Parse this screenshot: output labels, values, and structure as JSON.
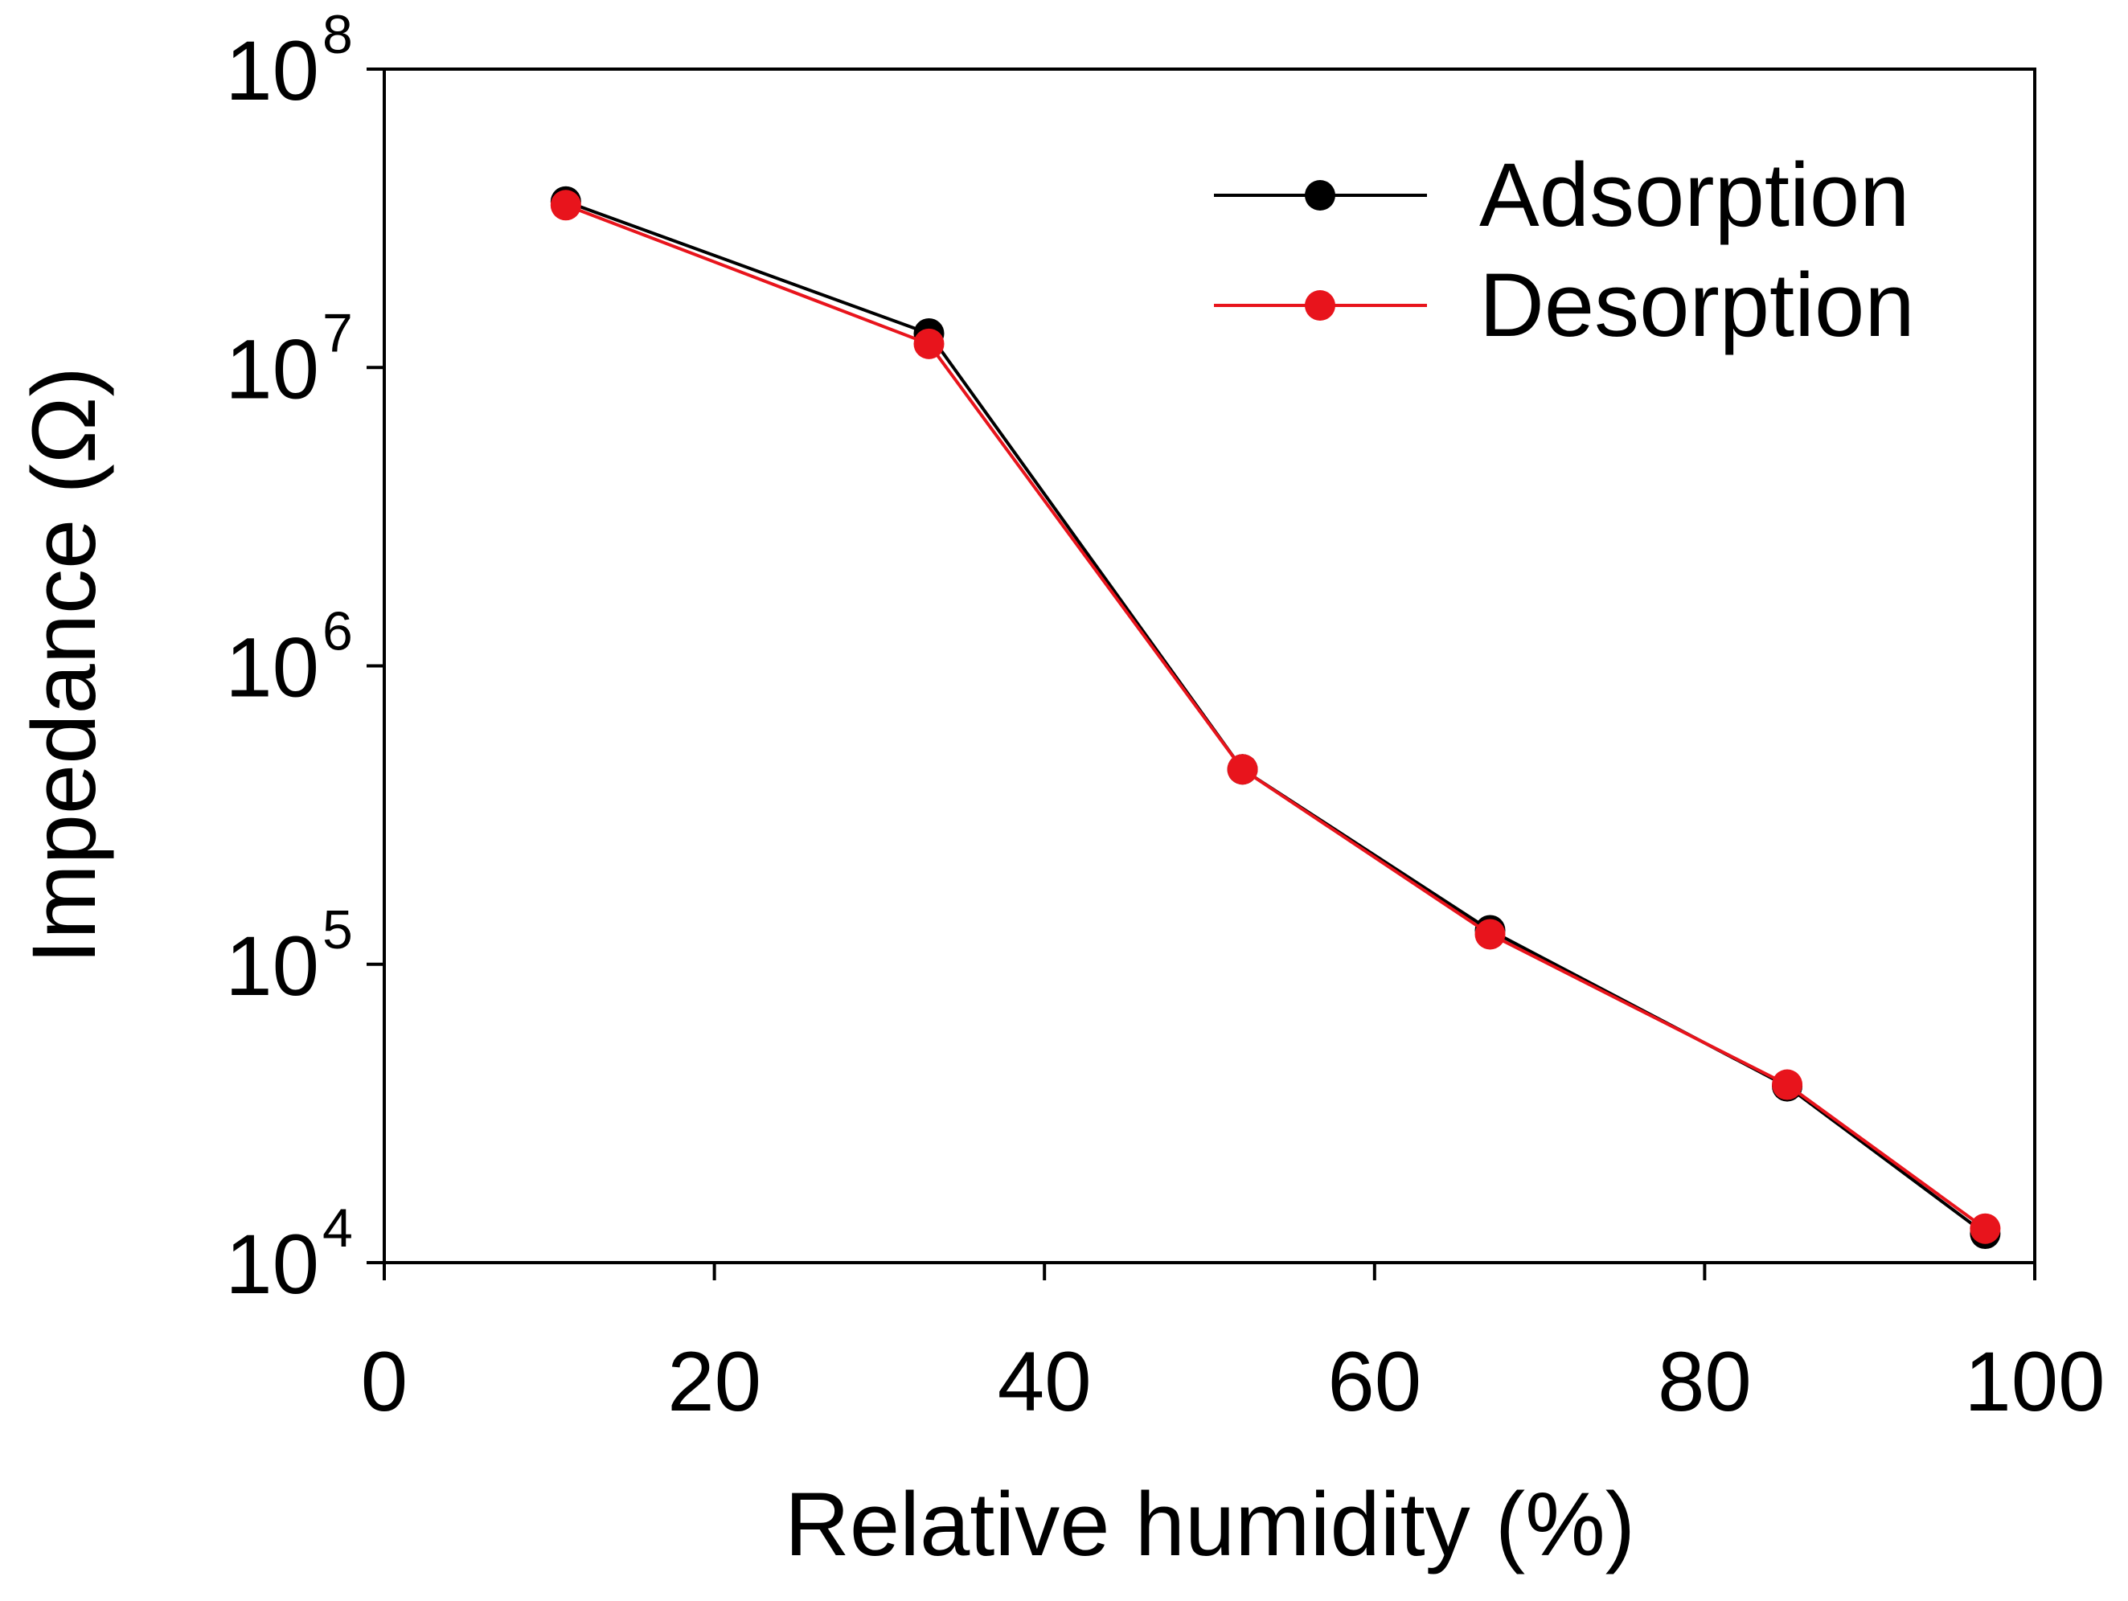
{
  "chart_data": {
    "type": "line",
    "title": "",
    "xlabel": "Relative humidity (%)",
    "ylabel": "Impedance (Ω)",
    "xlim": [
      0,
      100
    ],
    "xticks": [
      "0",
      "20",
      "40",
      "60",
      "80",
      "100"
    ],
    "xtick_values": [
      0,
      20,
      40,
      60,
      80,
      100
    ],
    "yscale": "log",
    "ylim": [
      10000,
      100000000
    ],
    "yticks": [
      {
        "base": "10",
        "exp": "4",
        "value": 10000
      },
      {
        "base": "10",
        "exp": "5",
        "value": 100000
      },
      {
        "base": "10",
        "exp": "6",
        "value": 1000000
      },
      {
        "base": "10",
        "exp": "7",
        "value": 10000000
      },
      {
        "base": "10",
        "exp": "8",
        "value": 100000000
      }
    ],
    "legend_position": "top-right",
    "series": [
      {
        "name": "Adsorption",
        "color": "#000000",
        "x": [
          11,
          33,
          52,
          67,
          85,
          97
        ],
        "y": [
          36000000,
          13000000,
          450000,
          130000,
          39000,
          12500
        ]
      },
      {
        "name": "Desorption",
        "color": "#e8141c",
        "x": [
          11,
          33,
          52,
          67,
          85,
          97
        ],
        "y": [
          35000000,
          12000000,
          450000,
          126000,
          39500,
          13000
        ]
      }
    ]
  }
}
